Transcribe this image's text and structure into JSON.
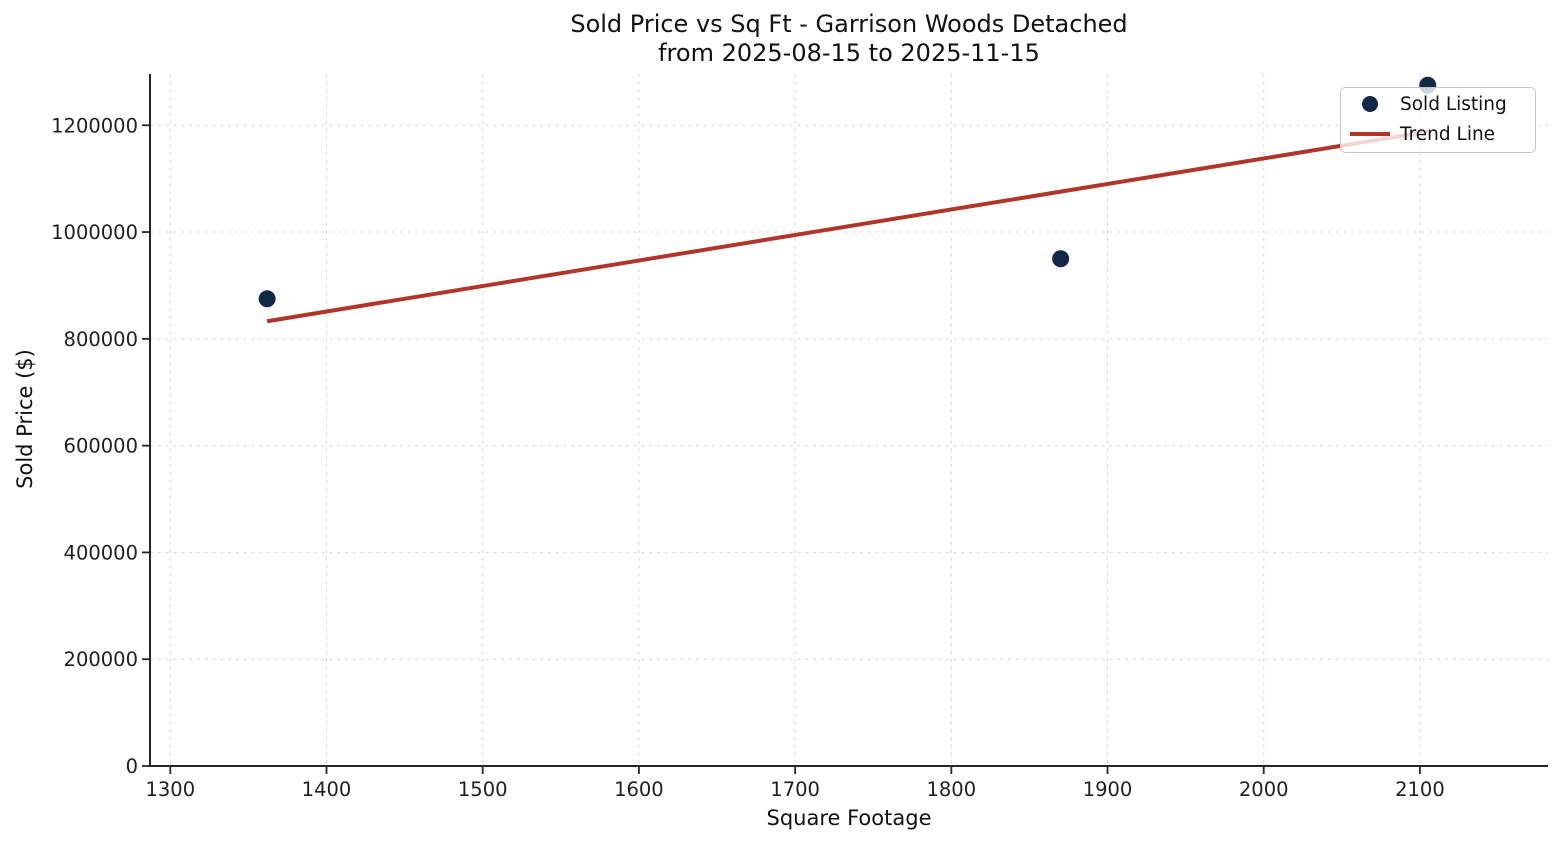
{
  "chart_data": {
    "type": "scatter",
    "title": "Sold Price vs Sq Ft - Garrison Woods Detached",
    "subtitle": "from 2025-08-15 to 2025-11-15",
    "xlabel": "Square Footage",
    "ylabel": "Sold Price ($)",
    "xlim": [
      1287,
      2182
    ],
    "ylim": [
      0,
      1296000
    ],
    "xticks": [
      1300,
      1400,
      1500,
      1600,
      1700,
      1800,
      1900,
      2000,
      2100
    ],
    "yticks": [
      0,
      200000,
      400000,
      600000,
      800000,
      1000000,
      1200000
    ],
    "grid": true,
    "grid_style": "dashed",
    "legend_position": "upper right",
    "series": [
      {
        "name": "Sold Listing",
        "type": "scatter",
        "marker": "circle",
        "color": "#122946",
        "points": [
          {
            "sqft": 1362,
            "price": 875000
          },
          {
            "sqft": 1870,
            "price": 950000
          },
          {
            "sqft": 2105,
            "price": 1275000
          }
        ]
      },
      {
        "name": "Trend Line",
        "type": "line",
        "color": "#b2352a",
        "points": [
          {
            "sqft": 1362,
            "price": 833000
          },
          {
            "sqft": 2105,
            "price": 1188000
          }
        ]
      }
    ]
  },
  "colors": {
    "background": "#ffffff",
    "axis": "#262626",
    "grid": "#d6d6d6",
    "tick_text": "#1f1f1f",
    "title_text": "#111111",
    "legend_border": "#c7c7c7"
  }
}
